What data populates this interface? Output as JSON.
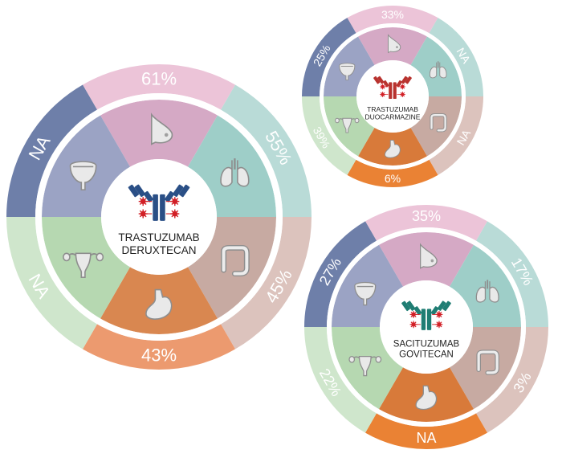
{
  "colors": {
    "pink_outer": "#ecc4d8",
    "pink_inner": "#d5a9c5",
    "teal_outer": "#b9dbd7",
    "teal_inner": "#9ecec8",
    "brown_outer": "#dcc3bd",
    "brown_inner": "#c7aaa2",
    "orange_outer": "#ec9a6f",
    "orange_inner": "#d98750",
    "orange_strong_outer": "#ea8234",
    "orange_strong_inner": "#d87a3a",
    "green_outer": "#cfe6cc",
    "green_inner": "#b6d8b1",
    "blue_outer": "#6e7fa9",
    "blue_inner": "#9ba3c4",
    "antibody_blue": "#2a4f86",
    "antibody_red": "#b8322e",
    "antibody_teal": "#1f7d73",
    "payload": "#d22027"
  },
  "organs": [
    "breast-icon",
    "lung-icon",
    "colon-icon",
    "stomach-icon",
    "uterus-icon",
    "bladder-icon"
  ],
  "diagrams": [
    {
      "id": "deruxtecan",
      "label_line1": "TRASTUZUMAB",
      "label_line2": "DERUXTECAN",
      "antibody_color": "antibody_blue",
      "segments": [
        {
          "organ": "breast",
          "value": "61%"
        },
        {
          "organ": "lung",
          "value": "55%"
        },
        {
          "organ": "colon",
          "value": "45%"
        },
        {
          "organ": "stomach",
          "value": "43%"
        },
        {
          "organ": "uterus",
          "value": "NA"
        },
        {
          "organ": "bladder",
          "value": "NA"
        }
      ]
    },
    {
      "id": "duocarmazine",
      "label_line1": "TRASTUZUMAB",
      "label_line2": "DUOCARMAZINE",
      "antibody_color": "antibody_red",
      "segments": [
        {
          "organ": "breast",
          "value": "33%"
        },
        {
          "organ": "lung",
          "value": "NA"
        },
        {
          "organ": "colon",
          "value": "NA"
        },
        {
          "organ": "stomach",
          "value": "6%"
        },
        {
          "organ": "uterus",
          "value": "39%"
        },
        {
          "organ": "bladder",
          "value": "25%"
        }
      ]
    },
    {
      "id": "govitecan",
      "label_line1": "SACITUZUMAB",
      "label_line2": "GOVITECAN",
      "antibody_color": "antibody_teal",
      "segments": [
        {
          "organ": "breast",
          "value": "35%"
        },
        {
          "organ": "lung",
          "value": "17%"
        },
        {
          "organ": "colon",
          "value": "3%"
        },
        {
          "organ": "stomach",
          "value": "NA"
        },
        {
          "organ": "uterus",
          "value": "22%"
        },
        {
          "organ": "bladder",
          "value": "27%"
        }
      ]
    }
  ]
}
